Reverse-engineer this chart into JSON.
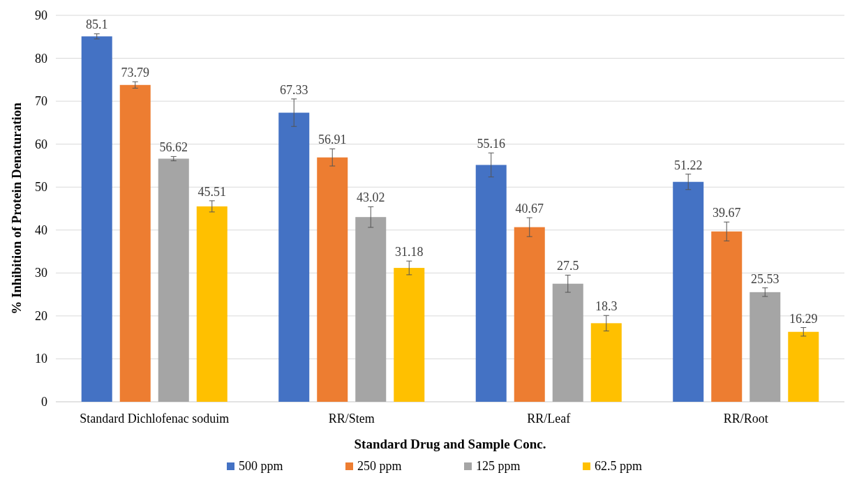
{
  "chart_data": {
    "type": "bar",
    "xlabel": "Standard Drug and Sample Conc.",
    "ylabel": "% Inhibition of Protein Denaturation",
    "categories": [
      "Standard Dichlofenac soduim",
      "RR/Stem",
      "RR/Leaf",
      "RR/Root"
    ],
    "series": [
      {
        "name": "500 ppm",
        "color": "#4472c4",
        "values": [
          85.1,
          67.33,
          55.16,
          51.22
        ],
        "errors": [
          0.6,
          3.2,
          2.8,
          1.8
        ]
      },
      {
        "name": "250 ppm",
        "color": "#ed7d31",
        "values": [
          73.79,
          56.91,
          40.67,
          39.67
        ],
        "errors": [
          0.75,
          2,
          2.2,
          2.2
        ]
      },
      {
        "name": "125 ppm",
        "color": "#a5a5a5",
        "values": [
          56.62,
          43.02,
          27.5,
          25.53
        ],
        "errors": [
          0.5,
          2.4,
          2,
          1
        ]
      },
      {
        "name": "62.5 ppm",
        "color": "#ffc000",
        "values": [
          45.51,
          31.18,
          18.3,
          16.29
        ],
        "errors": [
          1.3,
          1.6,
          1.8,
          1
        ]
      }
    ],
    "ylim": [
      0,
      90
    ],
    "yticks": [
      0,
      10,
      20,
      30,
      40,
      50,
      60,
      70,
      80,
      90
    ],
    "grid": "y",
    "legend": "bottom",
    "data_labels": true
  }
}
